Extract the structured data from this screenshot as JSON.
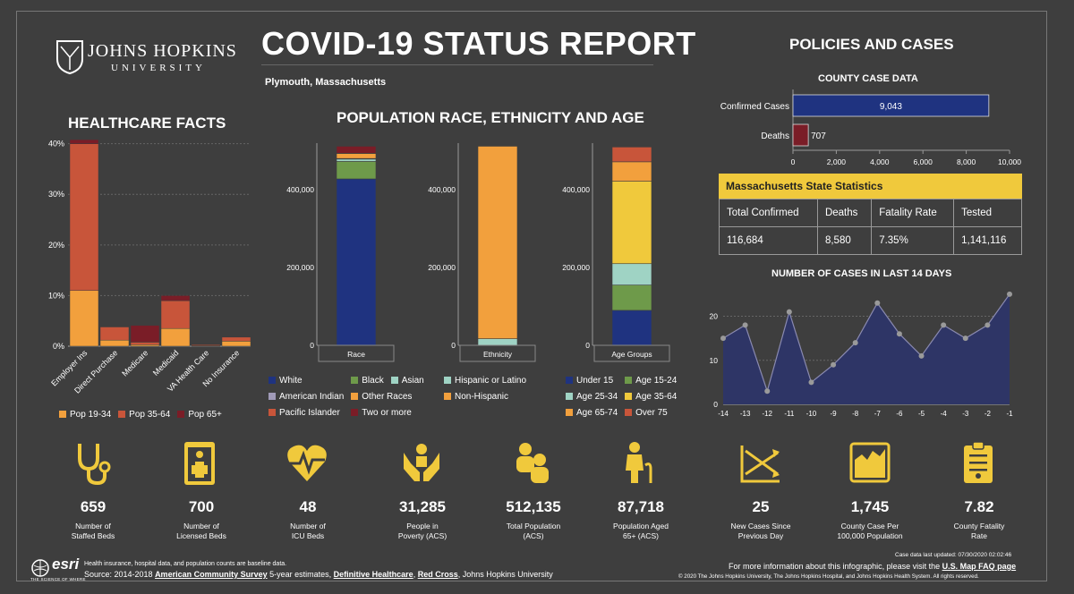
{
  "header": {
    "title": "COVID-19 STATUS REPORT",
    "subtitle": "Plymouth, Massachusetts",
    "logo_name": "JOHNS HOPKINS",
    "logo_sub": "UNIVERSITY"
  },
  "sections": {
    "healthcare": "HEALTHCARE FACTS",
    "population": "POPULATION RACE, ETHNICITY AND AGE",
    "policies": "POLICIES AND CASES",
    "county": "COUNTY CASE DATA",
    "last14": "NUMBER OF CASES IN LAST 14 DAYS"
  },
  "colors": {
    "bg": "#3e3e3e",
    "yellow": "#f0c93c",
    "navy": "#1f3380",
    "maroon": "#7a1d27",
    "orange": "#f2a03d",
    "rust": "#c8553a",
    "green": "#6e9a4a",
    "mint": "#9fd3c4",
    "lilac": "#a09ab8",
    "dark": "#5c1a22"
  },
  "chart_data": [
    {
      "type": "bar",
      "name": "healthcare",
      "categories": [
        "Employer Ins",
        "Direct Purchase",
        "Medicare",
        "Medicaid",
        "VA Health Care",
        "No Insurance"
      ],
      "series": [
        {
          "name": "Pop 19-34",
          "values": [
            11,
            1.2,
            0.3,
            3.5,
            0.1,
            1.0
          ]
        },
        {
          "name": "Pop 35-64",
          "values": [
            29,
            2.6,
            0.5,
            5.5,
            0.2,
            0.8
          ]
        },
        {
          "name": "Pop 65+",
          "values": [
            0.8,
            0.0,
            3.3,
            1.0,
            0.1,
            0.1
          ]
        }
      ],
      "yticks": [
        "0%",
        "10%",
        "20%",
        "30%",
        "40%"
      ],
      "ylim": [
        0,
        41
      ]
    },
    {
      "type": "bar",
      "name": "race",
      "categories": [
        "Race"
      ],
      "yticks": [
        "0",
        "200,000",
        "400,000"
      ],
      "ylim": [
        0,
        520000
      ],
      "series": [
        {
          "name": "White",
          "values": [
            428000
          ]
        },
        {
          "name": "Black",
          "values": [
            45000
          ]
        },
        {
          "name": "Asian",
          "values": [
            6000
          ]
        },
        {
          "name": "American Indian",
          "values": [
            1500
          ]
        },
        {
          "name": "Other Races",
          "values": [
            13000
          ]
        },
        {
          "name": "Pacific Islander",
          "values": [
            500
          ]
        },
        {
          "name": "Two or more",
          "values": [
            18000
          ]
        }
      ]
    },
    {
      "type": "bar",
      "name": "ethnicity",
      "categories": [
        "Ethnicity"
      ],
      "yticks": [
        "0",
        "200,000",
        "400,000"
      ],
      "ylim": [
        0,
        520000
      ],
      "series": [
        {
          "name": "Hispanic or Latino",
          "values": [
            17000
          ]
        },
        {
          "name": "Non-Hispanic",
          "values": [
            495000
          ]
        }
      ]
    },
    {
      "type": "bar",
      "name": "age",
      "categories": [
        "Age Groups"
      ],
      "yticks": [
        "0",
        "200,000",
        "400,000"
      ],
      "ylim": [
        0,
        520000
      ],
      "series": [
        {
          "name": "Under 15",
          "values": [
            90000
          ]
        },
        {
          "name": "Age 15-24",
          "values": [
            65000
          ]
        },
        {
          "name": "Age 25-34",
          "values": [
            55000
          ]
        },
        {
          "name": "Age 35-64",
          "values": [
            212000
          ]
        },
        {
          "name": "Age 65-74",
          "values": [
            50000
          ]
        },
        {
          "name": "Over 75",
          "values": [
            38000
          ]
        }
      ]
    },
    {
      "type": "bar",
      "name": "county",
      "categories": [
        "Confirmed Cases",
        "Deaths"
      ],
      "values": [
        9043,
        707
      ],
      "labels": [
        "9,043",
        "707"
      ],
      "xticks": [
        "0",
        "2,000",
        "4,000",
        "6,000",
        "8,000",
        "10,000"
      ],
      "xlim": [
        0,
        10000
      ]
    },
    {
      "type": "area",
      "name": "last14",
      "x": [
        "-14",
        "-13",
        "-12",
        "-11",
        "-10",
        "-9",
        "-8",
        "-7",
        "-6",
        "-5",
        "-4",
        "-3",
        "-2",
        "-1"
      ],
      "y": [
        15,
        18,
        3,
        21,
        5,
        9,
        14,
        23,
        16,
        11,
        18,
        15,
        18,
        25
      ],
      "yticks": [
        "0",
        "10",
        "20"
      ],
      "ylim": [
        0,
        26
      ]
    }
  ],
  "legends": {
    "healthcare": [
      {
        "label": "Pop 19-34",
        "color": "#f2a03d"
      },
      {
        "label": "Pop 35-64",
        "color": "#c8553a"
      },
      {
        "label": "Pop 65+",
        "color": "#7a1d27"
      }
    ],
    "race": [
      {
        "label": "White",
        "color": "#1f3380"
      },
      {
        "label": "Black",
        "color": "#6e9a4a"
      },
      {
        "label": "Asian",
        "color": "#9fd3c4"
      },
      {
        "label": "American Indian",
        "color": "#a09ab8"
      },
      {
        "label": "Other Races",
        "color": "#f2a03d"
      },
      {
        "label": "Pacific Islander",
        "color": "#c8553a"
      },
      {
        "label": "Two or more",
        "color": "#7a1d27"
      }
    ],
    "ethnicity": [
      {
        "label": "Hispanic or Latino",
        "color": "#9fd3c4"
      },
      {
        "label": "Non-Hispanic",
        "color": "#f2a03d"
      }
    ],
    "age": [
      {
        "label": "Under 15",
        "color": "#1f3380"
      },
      {
        "label": "Age 15-24",
        "color": "#6e9a4a"
      },
      {
        "label": "Age 25-34",
        "color": "#9fd3c4"
      },
      {
        "label": "Age 35-64",
        "color": "#f0c93c"
      },
      {
        "label": "Age 65-74",
        "color": "#f2a03d"
      },
      {
        "label": "Over 75",
        "color": "#c8553a"
      }
    ]
  },
  "ma_table": {
    "title": "Massachusetts State Statistics",
    "headers": [
      "Total Confirmed",
      "Deaths",
      "Fatality Rate",
      "Tested"
    ],
    "values": [
      "116,684",
      "8,580",
      "7.35%",
      "1,141,116"
    ]
  },
  "stats": [
    {
      "icon": "stethoscope-icon",
      "value": "659",
      "label1": "Number of",
      "label2": "Staffed Beds"
    },
    {
      "icon": "licensed-bed-icon",
      "value": "700",
      "label1": "Number of",
      "label2": "Licensed Beds"
    },
    {
      "icon": "heart-pulse-icon",
      "value": "48",
      "label1": "Number of",
      "label2": "ICU Beds"
    },
    {
      "icon": "helping-hands-icon",
      "value": "31,285",
      "label1": "People in",
      "label2": "Poverty (ACS)"
    },
    {
      "icon": "population-icon",
      "value": "512,135",
      "label1": "Total Population",
      "label2": "(ACS)"
    },
    {
      "icon": "elderly-icon",
      "value": "87,718",
      "label1": "Population Aged",
      "label2": "65+ (ACS)"
    },
    {
      "icon": "trend-cross-icon",
      "value": "25",
      "label1": "New Cases Since",
      "label2": "Previous Day"
    },
    {
      "icon": "county-map-icon",
      "value": "1,745",
      "label1": "County Case Per",
      "label2": "100,000 Population"
    },
    {
      "icon": "clipboard-icon",
      "value": "7.82",
      "label1": "County Fatality",
      "label2": "Rate"
    }
  ],
  "footer": {
    "esri": "esri",
    "esri_tag": "THE SCIENCE OF WHERE",
    "note1": "Health insurance, hospital data, and population counts are baseline data.",
    "source_prefix": "Source: 2014-2018 ",
    "source_acs": "American Community Survey",
    "source_mid": " 5-year estimates, ",
    "source_dh": "Definitive Healthcare",
    "source_sep": ", ",
    "source_rc": "Red Cross",
    "source_end": ", Johns Hopkins University",
    "updated": "Case data last updated: 07/30/2020 02:02:46",
    "more_prefix": "For more information about this infographic, please visit the ",
    "more_link": "U.S. Map FAQ page",
    "copyright": "© 2020 The Johns Hopkins University, The Johns Hopkins Hospital, and Johns Hopkins Health System. All rights reserved."
  }
}
